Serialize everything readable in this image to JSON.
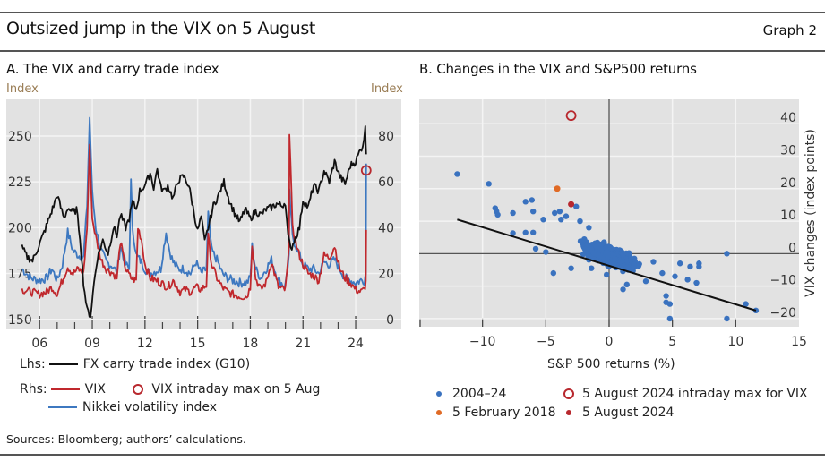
{
  "header": {
    "title": "Outsized jump in the VIX on 5 August",
    "graph_number": "Graph 2"
  },
  "footer": {
    "sources": "Sources: Bloomberg; authors’ calculations."
  },
  "colors": {
    "fx_carry": "#111111",
    "vix": "#c0282d",
    "nikkei": "#3d78c0",
    "scatter_main": "#3a72bf",
    "feb2018": "#e06a25",
    "aug2024": "#b8282e",
    "plot_bg": "#e2e2e2",
    "grid": "#f4f4f4"
  },
  "chart_data": [
    {
      "type": "line",
      "panel": "A",
      "title": "A. The VIX and carry trade index",
      "ylabel_left": "Index",
      "ylabel_right": "Index",
      "xlabel": "",
      "x_tick_labels": [
        "06",
        "09",
        "12",
        "15",
        "18",
        "21",
        "24"
      ],
      "x_tick_years": [
        2006,
        2009,
        2012,
        2015,
        2018,
        2021,
        2024
      ],
      "x_minor_tick_years": [
        2007,
        2008,
        2010,
        2011,
        2013,
        2014,
        2016,
        2017,
        2019,
        2020,
        2022,
        2023
      ],
      "xlim": [
        2004.1,
        2026.6
      ],
      "ylim_left": [
        145,
        270
      ],
      "ylim_right": [
        -4,
        96
      ],
      "y_ticks_left": [
        150,
        175,
        200,
        225,
        250
      ],
      "y_ticks_right": [
        0,
        20,
        40,
        60,
        80
      ],
      "grid": true,
      "legend": {
        "lhs_prefix": "Lhs:",
        "rhs_prefix": "Rhs:",
        "entries": [
          {
            "label": "FX carry trade index (G10)",
            "axis": "lhs",
            "marker": "line"
          },
          {
            "label": "VIX",
            "axis": "rhs",
            "marker": "line"
          },
          {
            "label": "VIX intraday max on 5 Aug",
            "axis": "rhs",
            "marker": "hollow-circle"
          },
          {
            "label": "Nikkei volatility index",
            "axis": "rhs",
            "marker": "line"
          }
        ],
        "placement": "bottom"
      },
      "series": [
        {
          "name": "FX carry trade index (G10)",
          "axis": "left",
          "x": [
            2005.0,
            2005.3,
            2005.6,
            2005.9,
            2006.2,
            2006.5,
            2006.8,
            2007.0,
            2007.2,
            2007.4,
            2007.6,
            2007.9,
            2008.1,
            2008.3,
            2008.5,
            2008.7,
            2008.9,
            2009.1,
            2009.3,
            2009.6,
            2009.9,
            2010.2,
            2010.4,
            2010.6,
            2010.9,
            2011.1,
            2011.3,
            2011.5,
            2011.7,
            2011.9,
            2012.1,
            2012.3,
            2012.5,
            2012.7,
            2012.9,
            2013.1,
            2013.3,
            2013.6,
            2013.9,
            2014.2,
            2014.5,
            2014.8,
            2015.0,
            2015.2,
            2015.4,
            2015.6,
            2015.9,
            2016.2,
            2016.5,
            2016.8,
            2017.1,
            2017.4,
            2017.7,
            2018.0,
            2018.3,
            2018.6,
            2018.9,
            2019.2,
            2019.5,
            2019.8,
            2020.0,
            2020.15,
            2020.3,
            2020.5,
            2020.8,
            2021.0,
            2021.3,
            2021.6,
            2021.9,
            2022.2,
            2022.5,
            2022.8,
            2023.1,
            2023.4,
            2023.7,
            2024.0,
            2024.2,
            2024.4,
            2024.55,
            2024.6
          ],
          "values": [
            189,
            184,
            182,
            189,
            196,
            204,
            212,
            218,
            211,
            205,
            211,
            208,
            210,
            195,
            170,
            155,
            152,
            170,
            184,
            193,
            186,
            200,
            196,
            207,
            200,
            205,
            214,
            210,
            220,
            222,
            225,
            230,
            222,
            232,
            222,
            220,
            223,
            216,
            226,
            228,
            223,
            208,
            198,
            206,
            192,
            200,
            212,
            218,
            225,
            215,
            208,
            203,
            210,
            205,
            209,
            207,
            210,
            211,
            213,
            212,
            214,
            195,
            188,
            193,
            200,
            215,
            211,
            223,
            220,
            231,
            225,
            236,
            228,
            224,
            234,
            236,
            241,
            245,
            254,
            240
          ]
        },
        {
          "name": "VIX",
          "axis": "right",
          "x": [
            2005.0,
            2005.5,
            2006.0,
            2006.4,
            2006.7,
            2007.0,
            2007.3,
            2007.6,
            2007.9,
            2008.2,
            2008.5,
            2008.7,
            2008.85,
            2009.0,
            2009.2,
            2009.5,
            2009.8,
            2010.2,
            2010.4,
            2010.6,
            2010.9,
            2011.2,
            2011.5,
            2011.6,
            2011.8,
            2012.0,
            2012.3,
            2012.6,
            2012.9,
            2013.3,
            2013.6,
            2014.0,
            2014.3,
            2014.6,
            2014.9,
            2015.2,
            2015.5,
            2015.6,
            2015.8,
            2016.1,
            2016.4,
            2016.7,
            2017.0,
            2017.4,
            2017.8,
            2018.0,
            2018.1,
            2018.3,
            2018.6,
            2018.9,
            2019.2,
            2019.6,
            2019.9,
            2020.0,
            2020.2,
            2020.23,
            2020.4,
            2020.7,
            2021.0,
            2021.3,
            2021.6,
            2021.9,
            2022.2,
            2022.5,
            2022.8,
            2023.1,
            2023.4,
            2023.7,
            2024.0,
            2024.3,
            2024.5,
            2024.58,
            2024.6
          ],
          "values": [
            13,
            12,
            11,
            12,
            14,
            11,
            17,
            23,
            20,
            22,
            20,
            40,
            75,
            44,
            36,
            26,
            22,
            20,
            18,
            34,
            22,
            18,
            17,
            40,
            35,
            24,
            18,
            17,
            16,
            14,
            17,
            12,
            13,
            12,
            14,
            13,
            15,
            36,
            24,
            18,
            14,
            12,
            11,
            10,
            10,
            14,
            33,
            18,
            13,
            16,
            25,
            14,
            13,
            13,
            30,
            82,
            40,
            30,
            24,
            20,
            19,
            17,
            28,
            27,
            32,
            22,
            18,
            16,
            13,
            12,
            13,
            16,
            39
          ]
        },
        {
          "name": "Nikkei volatility index",
          "axis": "right",
          "x": [
            2005.0,
            2005.5,
            2006.0,
            2006.4,
            2006.7,
            2007.0,
            2007.3,
            2007.6,
            2007.9,
            2008.2,
            2008.5,
            2008.7,
            2008.85,
            2009.0,
            2009.2,
            2009.5,
            2009.8,
            2010.2,
            2010.4,
            2010.6,
            2010.9,
            2011.1,
            2011.2,
            2011.3,
            2011.5,
            2011.8,
            2012.0,
            2012.3,
            2012.6,
            2012.9,
            2013.2,
            2013.4,
            2013.6,
            2013.9,
            2014.2,
            2014.6,
            2014.9,
            2015.2,
            2015.5,
            2015.6,
            2015.8,
            2016.1,
            2016.4,
            2016.7,
            2017.0,
            2017.4,
            2017.8,
            2018.0,
            2018.1,
            2018.3,
            2018.6,
            2018.9,
            2019.2,
            2019.6,
            2019.9,
            2020.0,
            2020.2,
            2020.23,
            2020.4,
            2020.7,
            2021.0,
            2021.3,
            2021.6,
            2021.9,
            2022.2,
            2022.5,
            2022.8,
            2023.1,
            2023.4,
            2023.7,
            2024.0,
            2024.3,
            2024.5,
            2024.58,
            2024.6
          ],
          "values": [
            22,
            18,
            17,
            18,
            22,
            17,
            24,
            38,
            30,
            28,
            27,
            50,
            88,
            55,
            40,
            30,
            25,
            23,
            20,
            32,
            24,
            22,
            60,
            40,
            28,
            25,
            22,
            20,
            21,
            22,
            38,
            30,
            25,
            22,
            22,
            20,
            25,
            20,
            22,
            46,
            30,
            26,
            20,
            18,
            17,
            16,
            16,
            18,
            32,
            22,
            18,
            22,
            26,
            17,
            15,
            15,
            28,
            55,
            36,
            30,
            24,
            22,
            22,
            20,
            25,
            24,
            26,
            22,
            18,
            17,
            16,
            17,
            17,
            20,
            68
          ]
        }
      ],
      "markers": [
        {
          "name": "VIX intraday max on 5 Aug",
          "x": 2024.6,
          "y": 65,
          "axis": "right",
          "style": "hollow-circle"
        }
      ]
    },
    {
      "type": "scatter",
      "panel": "B",
      "title": "B. Changes in the VIX and S&P500 returns",
      "xlabel": "S&P 500 returns (%)",
      "ylabel": "VIX changes (index points)",
      "xlim": [
        -15,
        15
      ],
      "ylim": [
        -22.5,
        47.5
      ],
      "x_ticks": [
        -10,
        -5,
        0,
        5,
        10,
        15
      ],
      "x_tick_labels": [
        "−10",
        "−5",
        "0",
        "5",
        "10",
        "15"
      ],
      "y_ticks": [
        -20,
        -10,
        0,
        10,
        20,
        30,
        40
      ],
      "y_tick_labels": [
        "−20",
        "−10",
        "0",
        "10",
        "20",
        "30",
        "40"
      ],
      "grid": true,
      "legend": {
        "placement": "bottom",
        "entries": [
          {
            "label": "2004–24",
            "marker": "dot",
            "color_key": "scatter_main"
          },
          {
            "label": "5 August 2024 intraday max for VIX",
            "marker": "hollow-circle",
            "color_key": "aug2024"
          },
          {
            "label": "5 February 2018",
            "marker": "dot",
            "color_key": "feb2018"
          },
          {
            "label": "5 August 2024",
            "marker": "dot",
            "color_key": "aug2024"
          }
        ]
      },
      "regression_line": {
        "x": [
          -12,
          11.6
        ],
        "y": [
          10.5,
          -17.5
        ]
      },
      "highlights": [
        {
          "name": "5 August 2024 intraday max for VIX",
          "x": -3.0,
          "y": 42.5,
          "style": "hollow-circle"
        },
        {
          "name": "5 February 2018",
          "x": -4.1,
          "y": 20.0,
          "style": "dot"
        },
        {
          "name": "5 August 2024",
          "x": -3.0,
          "y": 15.2,
          "style": "dot"
        }
      ],
      "outliers_2004_24": [
        {
          "x": -12.0,
          "y": 24.5
        },
        {
          "x": -9.5,
          "y": 21.5
        },
        {
          "x": -9.0,
          "y": 14.0
        },
        {
          "x": -8.9,
          "y": 13.0
        },
        {
          "x": -8.8,
          "y": 12.0
        },
        {
          "x": -7.6,
          "y": 12.5
        },
        {
          "x": -7.6,
          "y": 6.3
        },
        {
          "x": -6.6,
          "y": 16.0
        },
        {
          "x": -6.1,
          "y": 16.5
        },
        {
          "x": -6.0,
          "y": 13.0
        },
        {
          "x": -6.6,
          "y": 6.5
        },
        {
          "x": -6.0,
          "y": 6.5
        },
        {
          "x": -5.8,
          "y": 1.5
        },
        {
          "x": -5.2,
          "y": 10.5
        },
        {
          "x": -5.0,
          "y": 0.5
        },
        {
          "x": -4.3,
          "y": 12.5
        },
        {
          "x": -4.4,
          "y": -6.0
        },
        {
          "x": -3.9,
          "y": 13.0
        },
        {
          "x": -3.8,
          "y": 10.5
        },
        {
          "x": -3.4,
          "y": 11.5
        },
        {
          "x": -2.6,
          "y": 14.5
        },
        {
          "x": -2.3,
          "y": 10.0
        },
        {
          "x": -3.0,
          "y": -4.5
        },
        {
          "x": -1.6,
          "y": 8.0
        },
        {
          "x": -1.4,
          "y": -4.5
        },
        {
          "x": -0.2,
          "y": -6.5
        },
        {
          "x": 1.1,
          "y": -11.0
        },
        {
          "x": 1.4,
          "y": -9.5
        },
        {
          "x": 2.9,
          "y": -8.5
        },
        {
          "x": 3.5,
          "y": -2.5
        },
        {
          "x": 4.5,
          "y": -13.0
        },
        {
          "x": 4.5,
          "y": -15.0
        },
        {
          "x": 4.8,
          "y": -15.5
        },
        {
          "x": 4.8,
          "y": -20.0
        },
        {
          "x": 5.6,
          "y": -3.0
        },
        {
          "x": 6.4,
          "y": -4.0
        },
        {
          "x": 7.1,
          "y": -3.0
        },
        {
          "x": 7.1,
          "y": -4.0
        },
        {
          "x": 6.9,
          "y": -9.0
        },
        {
          "x": 9.3,
          "y": 0.0
        },
        {
          "x": 9.3,
          "y": -20.0
        },
        {
          "x": 10.8,
          "y": -15.5
        },
        {
          "x": 11.6,
          "y": -17.5
        },
        {
          "x": 5.2,
          "y": -7.0
        },
        {
          "x": 4.2,
          "y": -6.0
        },
        {
          "x": 6.2,
          "y": -8.0
        }
      ],
      "cluster_2004_24": {
        "description": "dense cloud of daily observations around the regression line",
        "x_range": [
          -5.5,
          5.5
        ],
        "y_range": [
          -10,
          8
        ],
        "slope": -1.19,
        "intercept": -3.8,
        "count": 900
      }
    }
  ]
}
